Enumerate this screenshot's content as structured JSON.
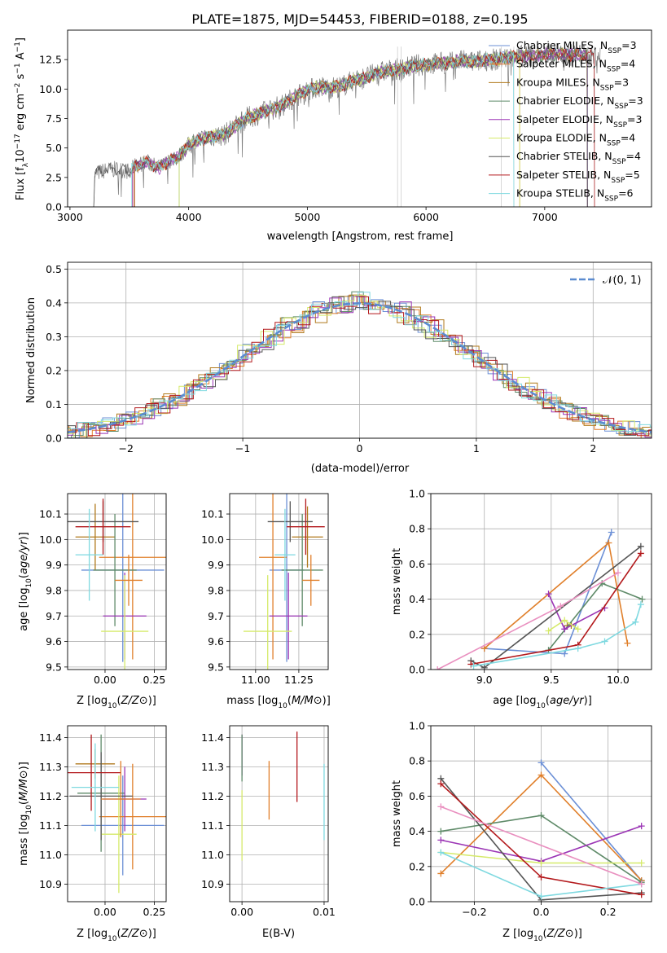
{
  "title": "PLATE=1875, MJD=54453, FIBERID=0188, z=0.195",
  "models": [
    {
      "name": "Chabrier MILES",
      "nssp": "3",
      "color": "#6b8fd6"
    },
    {
      "name": "Salpeter MILES",
      "nssp": "4",
      "color": "#e07f2a"
    },
    {
      "name": "Kroupa MILES",
      "nssp": "3",
      "color": "#b07a1c"
    },
    {
      "name": "Chabrier ELODIE",
      "nssp": "3",
      "color": "#5e8a68"
    },
    {
      "name": "Salpeter ELODIE",
      "nssp": "3",
      "color": "#9b35b5"
    },
    {
      "name": "Kroupa ELODIE",
      "nssp": "4",
      "color": "#d5ea6a"
    },
    {
      "name": "Chabrier STELIB",
      "nssp": "4",
      "color": "#555555"
    },
    {
      "name": "Salpeter STELIB",
      "nssp": "5",
      "color": "#b3191c"
    },
    {
      "name": "Kroupa STELIB",
      "nssp": "6",
      "color": "#7fd9e0"
    }
  ],
  "chart_data": [
    {
      "type": "line",
      "id": "spectrum",
      "xlabel": "wavelength [Angstrom, rest frame]",
      "ylabel_parts": [
        "Flux [f",
        "λ",
        "10",
        "−17",
        " erg cm",
        "−2",
        " s",
        "−1",
        " A",
        "−1",
        "]"
      ],
      "xlim": [
        2980,
        7900
      ],
      "ylim": [
        0,
        15
      ],
      "xticks": [
        3000,
        4000,
        5000,
        6000,
        7000
      ],
      "yticks": [
        0.0,
        2.5,
        5.0,
        7.5,
        10.0,
        12.5
      ],
      "ytick_labels": [
        "0.0",
        "2.5",
        "5.0",
        "7.5",
        "10.0",
        "12.5"
      ],
      "envelope": [
        [
          3200,
          0.0
        ],
        [
          3210,
          2.8
        ],
        [
          3300,
          3.1
        ],
        [
          3400,
          3.2
        ],
        [
          3500,
          3.0
        ],
        [
          3550,
          3.5
        ],
        [
          3650,
          3.8
        ],
        [
          3750,
          3.3
        ],
        [
          3850,
          4.0
        ],
        [
          3900,
          4.2
        ],
        [
          3950,
          4.6
        ],
        [
          4000,
          5.3
        ],
        [
          4100,
          5.7
        ],
        [
          4200,
          6.0
        ],
        [
          4300,
          6.1
        ],
        [
          4400,
          6.9
        ],
        [
          4500,
          7.6
        ],
        [
          4600,
          7.9
        ],
        [
          4700,
          8.3
        ],
        [
          4800,
          8.7
        ],
        [
          4900,
          9.4
        ],
        [
          5000,
          9.9
        ],
        [
          5100,
          10.2
        ],
        [
          5200,
          10.1
        ],
        [
          5300,
          10.3
        ],
        [
          5400,
          10.8
        ],
        [
          5500,
          11.0
        ],
        [
          5600,
          11.4
        ],
        [
          5700,
          11.6
        ],
        [
          5800,
          11.7
        ],
        [
          5900,
          12.0
        ],
        [
          6000,
          12.1
        ],
        [
          6100,
          12.2
        ],
        [
          6200,
          12.2
        ],
        [
          6300,
          12.4
        ],
        [
          6400,
          12.3
        ],
        [
          6500,
          12.5
        ],
        [
          6600,
          12.5
        ],
        [
          6700,
          12.7
        ],
        [
          6800,
          12.8
        ],
        [
          6900,
          12.8
        ],
        [
          7000,
          12.9
        ],
        [
          7100,
          13.0
        ],
        [
          7200,
          12.9
        ],
        [
          7300,
          12.9
        ],
        [
          7400,
          12.8
        ]
      ],
      "model_starts": [
        3525,
        3525,
        3545,
        3920,
        3525,
        3920,
        3200,
        3540,
        3520
      ],
      "model_ends": [
        7360,
        6790,
        7360,
        7360,
        7360,
        6790,
        7360,
        7420,
        6740
      ]
    },
    {
      "type": "bar",
      "id": "residual-hist",
      "xlabel": "(data-model)/error",
      "ylabel": "Normed distribution",
      "xlim": [
        -2.5,
        2.5
      ],
      "ylim": [
        0,
        0.52
      ],
      "xticks": [
        -2,
        -1,
        0,
        1,
        2
      ],
      "xtick_labels": [
        "−2",
        "−1",
        "0",
        "1",
        "2"
      ],
      "yticks": [
        0.0,
        0.1,
        0.2,
        0.3,
        0.4,
        0.5
      ],
      "ytick_labels": [
        "0.0",
        "0.1",
        "0.2",
        "0.3",
        "0.4",
        "0.5"
      ],
      "bin_width": 0.1,
      "reference_label": "𝒩(0, 1)",
      "reference_color": "#5b8bd0"
    },
    {
      "type": "scatter",
      "id": "z-vs-age",
      "xlabel": "Z [log10(Z/Z⊙)]",
      "ylabel": "age  [log10(age/yr)]",
      "xlim": [
        -0.19,
        0.31
      ],
      "ylim": [
        9.49,
        10.18
      ],
      "xticks": [
        0.0,
        0.25
      ],
      "xtick_labels": [
        "0.00",
        "0.25"
      ],
      "yticks": [
        9.5,
        9.6,
        9.7,
        9.8,
        9.9,
        10.0,
        10.1
      ],
      "ytick_labels": [
        "9.5",
        "9.6",
        "9.7",
        "9.8",
        "9.9",
        "10.0",
        "10.1"
      ],
      "points": [
        {
          "x": 0.09,
          "xerr": 0.21,
          "y": 9.88,
          "yerr": 0.36,
          "model": 0
        },
        {
          "x": 0.14,
          "xerr": 0.17,
          "y": 9.93,
          "yerr": 0.4,
          "model": 1
        },
        {
          "x": -0.05,
          "xerr": 0.1,
          "y": 10.01,
          "yerr": 0.13,
          "model": 2
        },
        {
          "x": 0.05,
          "xerr": 0.11,
          "y": 9.88,
          "yerr": 0.22,
          "model": 3
        },
        {
          "x": 0.1,
          "xerr": 0.11,
          "y": 9.7,
          "yerr": 0.17,
          "model": 4
        },
        {
          "x": 0.1,
          "xerr": 0.12,
          "y": 9.64,
          "yerr": 0.22,
          "model": 5
        },
        {
          "x": -0.01,
          "xerr": 0.18,
          "y": 10.07,
          "yerr": 0.08,
          "model": 6
        },
        {
          "x": -0.01,
          "xerr": 0.14,
          "y": 10.05,
          "yerr": 0.11,
          "model": 7
        },
        {
          "x": -0.08,
          "xerr": 0.07,
          "y": 9.94,
          "yerr": 0.18,
          "model": 8
        },
        {
          "x": 0.12,
          "xerr": 0.07,
          "y": 9.84,
          "yerr": 0.1,
          "model": 1
        }
      ]
    },
    {
      "type": "scatter",
      "id": "mass-vs-age",
      "xlabel": "mass [log10(M/M⊙)]",
      "ylabel": "",
      "xlim": [
        10.85,
        11.42
      ],
      "ylim": [
        9.49,
        10.18
      ],
      "xticks": [
        11.0,
        11.25
      ],
      "xtick_labels": [
        "11.00",
        "11.25"
      ],
      "yticks": [
        9.5,
        9.6,
        9.7,
        9.8,
        9.9,
        10.0,
        10.1
      ],
      "ytick_labels": [
        "9.5",
        "9.6",
        "9.7",
        "9.8",
        "9.9",
        "10.0",
        "10.1"
      ],
      "points": [
        {
          "x": 11.18,
          "xerr": 0.1,
          "y": 9.88,
          "yerr": 0.36,
          "model": 0
        },
        {
          "x": 11.1,
          "xerr": 0.08,
          "y": 9.93,
          "yerr": 0.4,
          "model": 1
        },
        {
          "x": 11.3,
          "xerr": 0.09,
          "y": 10.01,
          "yerr": 0.12,
          "model": 2
        },
        {
          "x": 11.27,
          "xerr": 0.12,
          "y": 9.88,
          "yerr": 0.22,
          "model": 3
        },
        {
          "x": 11.19,
          "xerr": 0.11,
          "y": 9.7,
          "yerr": 0.17,
          "model": 4
        },
        {
          "x": 11.07,
          "xerr": 0.14,
          "y": 9.64,
          "yerr": 0.22,
          "model": 5
        },
        {
          "x": 11.2,
          "xerr": 0.13,
          "y": 10.07,
          "yerr": 0.08,
          "model": 6
        },
        {
          "x": 11.29,
          "xerr": 0.11,
          "y": 10.05,
          "yerr": 0.11,
          "model": 7
        },
        {
          "x": 11.17,
          "xerr": 0.06,
          "y": 9.94,
          "yerr": 0.18,
          "model": 8
        },
        {
          "x": 11.32,
          "xerr": 0.05,
          "y": 9.84,
          "yerr": 0.1,
          "model": 1
        }
      ]
    },
    {
      "type": "line",
      "id": "age-vs-weight",
      "xlabel": "age  [log10(age/yr)]",
      "ylabel": "mass weight",
      "xlim": [
        8.6,
        10.25
      ],
      "ylim": [
        0,
        1
      ],
      "xticks": [
        9.0,
        9.5,
        10.0
      ],
      "xtick_labels": [
        "9.0",
        "9.5",
        "10.0"
      ],
      "yticks": [
        0,
        0.2,
        0.4,
        0.6,
        0.8,
        1.0
      ],
      "ytick_labels": [
        "0.0",
        "0.2",
        "0.4",
        "0.6",
        "0.8",
        "1.0"
      ],
      "series": [
        {
          "model": 0,
          "x": [
            9.0,
            9.6,
            9.95
          ],
          "y": [
            0.12,
            0.09,
            0.78
          ]
        },
        {
          "model": 1,
          "x": [
            9.0,
            9.93,
            10.07
          ],
          "y": [
            0.12,
            0.72,
            0.15
          ]
        },
        {
          "model": 2,
          "x": [
            9.62,
            9.65
          ],
          "y": [
            0.25,
            0.25
          ]
        },
        {
          "model": 3,
          "x": [
            9.48,
            9.88,
            10.18
          ],
          "y": [
            0.11,
            0.49,
            0.4
          ]
        },
        {
          "model": 4,
          "x": [
            9.48,
            9.6,
            9.9
          ],
          "y": [
            0.43,
            0.23,
            0.35
          ]
        },
        {
          "model": 5,
          "x": [
            9.48,
            9.6,
            9.7
          ],
          "y": [
            0.22,
            0.28,
            0.23
          ]
        },
        {
          "model": 6,
          "x": [
            8.9,
            9.0,
            10.17
          ],
          "y": [
            0.05,
            0.01,
            0.7
          ]
        },
        {
          "model": 7,
          "x": [
            8.9,
            9.7,
            10.17
          ],
          "y": [
            0.03,
            0.14,
            0.66
          ]
        },
        {
          "model": 8,
          "x": [
            8.92,
            9.7,
            9.9,
            10.13,
            10.17
          ],
          "y": [
            0.02,
            0.12,
            0.16,
            0.27,
            0.37
          ]
        },
        {
          "model": 1,
          "x": [
            8.65,
            9.57,
            10.0
          ],
          "y": [
            0.0,
            0.36,
            0.55
          ],
          "color": "#e98fbf"
        }
      ]
    },
    {
      "type": "scatter",
      "id": "z-vs-mass",
      "xlabel": "Z [log10(Z/Z⊙)]",
      "ylabel": "mass [log10(M/M⊙)]",
      "xlim": [
        -0.19,
        0.31
      ],
      "ylim": [
        10.84,
        11.44
      ],
      "xticks": [
        0.0,
        0.25
      ],
      "xtick_labels": [
        "0.00",
        "0.25"
      ],
      "yticks": [
        10.9,
        11.0,
        11.1,
        11.2,
        11.3,
        11.4
      ],
      "ytick_labels": [
        "10.9",
        "11.0",
        "11.1",
        "11.2",
        "11.3",
        "11.4"
      ],
      "points": [
        {
          "x": 0.09,
          "xerr": 0.21,
          "y": 11.1,
          "yerr": 0.17,
          "model": 0
        },
        {
          "x": 0.14,
          "xerr": 0.17,
          "y": 11.13,
          "yerr": 0.18,
          "model": 1
        },
        {
          "x": -0.05,
          "xerr": 0.1,
          "y": 11.31,
          "yerr": 0.05,
          "model": 2
        },
        {
          "x": -0.02,
          "xerr": 0.12,
          "y": 11.21,
          "yerr": 0.2,
          "model": 3
        },
        {
          "x": 0.1,
          "xerr": 0.11,
          "y": 11.19,
          "yerr": 0.11,
          "model": 4
        },
        {
          "x": 0.07,
          "xerr": 0.09,
          "y": 11.07,
          "yerr": 0.2,
          "model": 5
        },
        {
          "x": -0.02,
          "xerr": 0.16,
          "y": 11.2,
          "yerr": 0.15,
          "model": 6
        },
        {
          "x": -0.07,
          "xerr": 0.15,
          "y": 11.28,
          "yerr": 0.13,
          "model": 7
        },
        {
          "x": -0.05,
          "xerr": 0.12,
          "y": 11.23,
          "yerr": 0.15,
          "model": 8
        },
        {
          "x": 0.08,
          "xerr": 0.1,
          "y": 11.19,
          "yerr": 0.13,
          "model": 1
        }
      ]
    },
    {
      "type": "scatter",
      "id": "ebv-vs-mass",
      "xlabel": "E(B-V)",
      "ylabel": "",
      "xlim": [
        -0.0015,
        0.0105
      ],
      "ylim": [
        10.84,
        11.44
      ],
      "xticks": [
        0.0,
        0.01
      ],
      "xtick_labels": [
        "0.00",
        "0.01"
      ],
      "yticks": [
        10.9,
        11.0,
        11.1,
        11.2,
        11.3,
        11.4
      ],
      "ytick_labels": [
        "10.9",
        "11.0",
        "11.1",
        "11.2",
        "11.3",
        "11.4"
      ],
      "points": [
        {
          "x": 0.0,
          "y": 11.34,
          "yerr": 0.07,
          "model": 4
        },
        {
          "x": 0.0,
          "y": 11.1,
          "yerr": 0.12,
          "model": 5
        },
        {
          "x": 0.0,
          "y": 11.33,
          "yerr": 0.08,
          "model": 3
        },
        {
          "x": 0.0033,
          "y": 11.22,
          "yerr": 0.1,
          "model": 1
        },
        {
          "x": 0.0067,
          "y": 11.3,
          "yerr": 0.12,
          "model": 7
        },
        {
          "x": 0.01,
          "y": 11.18,
          "yerr": 0.13,
          "model": 8
        }
      ]
    },
    {
      "type": "line",
      "id": "z-vs-weight",
      "xlabel": "Z [log10(Z/Z⊙)]",
      "ylabel": "mass weight",
      "xlim": [
        -0.33,
        0.33
      ],
      "ylim": [
        0,
        1
      ],
      "xticks": [
        -0.2,
        0.0,
        0.2
      ],
      "xtick_labels": [
        "−0.2",
        "0.0",
        "0.2"
      ],
      "yticks": [
        0,
        0.2,
        0.4,
        0.6,
        0.8,
        1.0
      ],
      "ytick_labels": [
        "0.0",
        "0.2",
        "0.4",
        "0.6",
        "0.8",
        "1.0"
      ],
      "series": [
        {
          "model": 0,
          "x": [
            0.0,
            0.3
          ],
          "y": [
            0.79,
            0.12
          ]
        },
        {
          "model": 1,
          "x": [
            -0.3,
            0.0,
            0.3
          ],
          "y": [
            0.16,
            0.72,
            0.12
          ]
        },
        {
          "model": 3,
          "x": [
            -0.3,
            0.0,
            0.3
          ],
          "y": [
            0.4,
            0.49,
            0.11
          ]
        },
        {
          "model": 4,
          "x": [
            -0.3,
            0.0,
            0.3
          ],
          "y": [
            0.35,
            0.23,
            0.43
          ]
        },
        {
          "model": 5,
          "x": [
            -0.3,
            0.0,
            0.3
          ],
          "y": [
            0.28,
            0.22,
            0.22
          ]
        },
        {
          "model": 6,
          "x": [
            -0.3,
            0.0,
            0.3
          ],
          "y": [
            0.7,
            0.01,
            0.05
          ]
        },
        {
          "model": 7,
          "x": [
            -0.3,
            0.0,
            0.3
          ],
          "y": [
            0.67,
            0.14,
            0.04
          ]
        },
        {
          "model": 8,
          "x": [
            -0.3,
            0.0,
            0.3
          ],
          "y": [
            0.28,
            0.03,
            0.1
          ]
        },
        {
          "model": 1,
          "x": [
            -0.3,
            0.3
          ],
          "y": [
            0.54,
            0.1
          ],
          "color": "#e98fbf"
        }
      ]
    }
  ]
}
